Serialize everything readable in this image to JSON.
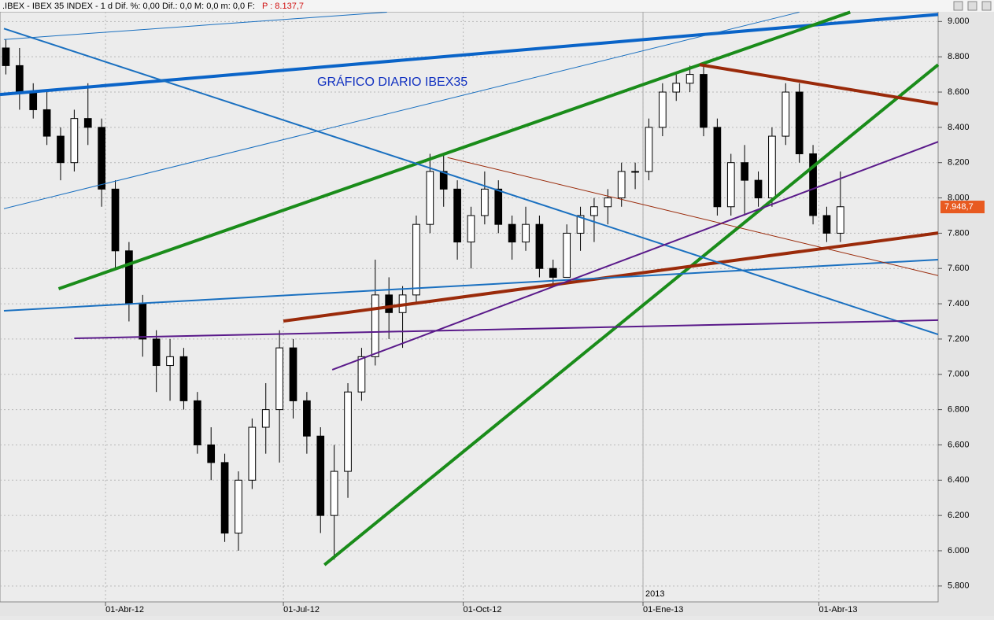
{
  "header": {
    "instrument": ".IBEX - IBEX 35 INDEX - 1 d  Dif. %: 0,00  Dif.: 0,0  M: 0,0  m: 0,0  F:",
    "price": "P : 8.137,7"
  },
  "chart_data": {
    "type": "candlestick",
    "title": "GRÁFICO DIARIO IBEX35",
    "x": [
      "2012-02-10",
      "2012-02-17",
      "2012-02-24",
      "2012-03-02",
      "2012-03-09",
      "2012-03-16",
      "2012-03-23",
      "2012-03-30",
      "2012-04-06",
      "2012-04-13",
      "2012-04-20",
      "2012-04-27",
      "2012-05-04",
      "2012-05-11",
      "2012-05-18",
      "2012-05-25",
      "2012-06-01",
      "2012-06-08",
      "2012-06-15",
      "2012-06-22",
      "2012-06-29",
      "2012-07-06",
      "2012-07-13",
      "2012-07-20",
      "2012-07-27",
      "2012-08-03",
      "2012-08-10",
      "2012-08-17",
      "2012-08-24",
      "2012-08-31",
      "2012-09-07",
      "2012-09-14",
      "2012-09-21",
      "2012-09-28",
      "2012-10-05",
      "2012-10-12",
      "2012-10-19",
      "2012-10-26",
      "2012-11-02",
      "2012-11-09",
      "2012-11-16",
      "2012-11-23",
      "2012-11-30",
      "2012-12-07",
      "2012-12-14",
      "2012-12-21",
      "2012-12-28",
      "2013-01-04",
      "2013-01-11",
      "2013-01-18",
      "2013-01-25",
      "2013-02-01",
      "2013-02-08",
      "2013-02-15",
      "2013-02-22",
      "2013-03-01",
      "2013-03-08",
      "2013-03-15",
      "2013-03-22",
      "2013-03-29",
      "2013-04-05",
      "2013-04-12"
    ],
    "open": [
      8850,
      8750,
      8600,
      8500,
      8350,
      8200,
      8450,
      8400,
      8050,
      7700,
      7400,
      7200,
      7050,
      7100,
      6850,
      6600,
      6500,
      6100,
      6400,
      6700,
      6800,
      7150,
      6850,
      6650,
      6200,
      6450,
      6900,
      7100,
      7450,
      7350,
      7450,
      7850,
      8150,
      8050,
      7750,
      7900,
      8050,
      7850,
      7750,
      7850,
      7600,
      7550,
      7800,
      7900,
      7950,
      8000,
      8150,
      8150,
      8400,
      8600,
      8650,
      8700,
      8400,
      7950,
      8200,
      8100,
      8000,
      8350,
      8600,
      8250,
      7900,
      7800
    ],
    "high": [
      8900,
      8850,
      8650,
      8600,
      8400,
      8500,
      8650,
      8450,
      8100,
      7750,
      7450,
      7250,
      7200,
      7150,
      6900,
      6700,
      6550,
      6450,
      6750,
      6950,
      7250,
      7200,
      6900,
      6700,
      6600,
      6950,
      7150,
      7650,
      7550,
      7500,
      7900,
      8250,
      8250,
      8100,
      7950,
      8150,
      8100,
      7900,
      7950,
      7900,
      7650,
      7850,
      7950,
      8000,
      8050,
      8200,
      8200,
      8450,
      8650,
      8700,
      8750,
      8750,
      8450,
      8250,
      8300,
      8150,
      8400,
      8650,
      8650,
      8300,
      7950,
      8150
    ],
    "low": [
      8700,
      8500,
      8450,
      8300,
      8100,
      8150,
      8300,
      7950,
      7600,
      7300,
      7100,
      6900,
      6850,
      6800,
      6550,
      6400,
      6050,
      6000,
      6350,
      6550,
      6500,
      6750,
      6550,
      6100,
      5950,
      6300,
      6850,
      7050,
      7200,
      7150,
      7400,
      7800,
      7950,
      7650,
      7600,
      7850,
      7800,
      7650,
      7700,
      7550,
      7500,
      7550,
      7700,
      7750,
      7850,
      7950,
      8050,
      8100,
      8350,
      8550,
      8600,
      8350,
      7900,
      7900,
      7900,
      7950,
      7950,
      8300,
      8200,
      7850,
      7750,
      7750
    ],
    "close": [
      8750,
      8600,
      8500,
      8350,
      8200,
      8450,
      8400,
      8050,
      7700,
      7400,
      7200,
      7050,
      7100,
      6850,
      6600,
      6500,
      6100,
      6400,
      6700,
      6800,
      7150,
      6850,
      6650,
      6200,
      6450,
      6900,
      7100,
      7450,
      7350,
      7450,
      7850,
      8150,
      8050,
      7750,
      7900,
      8050,
      7850,
      7750,
      7850,
      7600,
      7550,
      7800,
      7900,
      7950,
      8000,
      8150,
      8150,
      8400,
      8600,
      8650,
      8700,
      8400,
      7950,
      8200,
      8100,
      8000,
      8350,
      8600,
      8250,
      7900,
      7800,
      7950
    ],
    "xlim": [
      "2012-02-07",
      "2013-06-01"
    ],
    "xticks": [
      {
        "value": "2012-04-01",
        "label": "01-Abr-12"
      },
      {
        "value": "2012-07-01",
        "label": "01-Jul-12"
      },
      {
        "value": "2012-10-01",
        "label": "01-Oct-12"
      },
      {
        "value": "2013-01-01",
        "label": "01-Ene-13"
      },
      {
        "value": "2013-04-01",
        "label": "01-Abr-13"
      }
    ],
    "year_marker": {
      "value": "2013-01-01",
      "label": "2013"
    },
    "ylim": [
      5710,
      9055
    ],
    "yticks": [
      {
        "value": 5800,
        "label": "5.800"
      },
      {
        "value": 6000,
        "label": "6.000"
      },
      {
        "value": 6200,
        "label": "6.200"
      },
      {
        "value": 6400,
        "label": "6.400"
      },
      {
        "value": 6600,
        "label": "6.600"
      },
      {
        "value": 6800,
        "label": "6.800"
      },
      {
        "value": 7000,
        "label": "7.000"
      },
      {
        "value": 7200,
        "label": "7.200"
      },
      {
        "value": 7400,
        "label": "7.400"
      },
      {
        "value": 7600,
        "label": "7.600"
      },
      {
        "value": 7800,
        "label": "7.800"
      },
      {
        "value": 8000,
        "label": "8.000"
      },
      {
        "value": 8200,
        "label": "8.200"
      },
      {
        "value": 8400,
        "label": "8.400"
      },
      {
        "value": 8600,
        "label": "8.600"
      },
      {
        "value": 8800,
        "label": "8.800"
      },
      {
        "value": 9000,
        "label": "9.000"
      }
    ],
    "grid": true,
    "last_price": {
      "value": 7948.7,
      "label": "7.948,7"
    },
    "trendlines": [
      {
        "color": "#0a64c8",
        "width": 4,
        "x": [
          "2012-02-07",
          "2013-06-01"
        ],
        "y": [
          8586,
          9040
        ]
      },
      {
        "color": "#1a8c1a",
        "width": 4,
        "x": [
          "2012-03-08",
          "2013-04-17"
        ],
        "y": [
          7485,
          9053
        ]
      },
      {
        "color": "#1a8c1a",
        "width": 4,
        "x": [
          "2012-07-22",
          "2013-06-01"
        ],
        "y": [
          5920,
          8755
        ]
      },
      {
        "color": "#9a2a0a",
        "width": 4,
        "x": [
          "2012-07-01",
          "2013-06-01"
        ],
        "y": [
          7302,
          7801
        ]
      },
      {
        "color": "#9a2a0a",
        "width": 4,
        "x": [
          "2013-01-30",
          "2013-06-01"
        ],
        "y": [
          8755,
          8532
        ]
      },
      {
        "color": "#1a70c0",
        "width": 2,
        "x": [
          "2012-02-09",
          "2013-06-01"
        ],
        "y": [
          8960,
          7226
        ]
      },
      {
        "color": "#1a70c0",
        "width": 2,
        "x": [
          "2012-02-09",
          "2013-06-01"
        ],
        "y": [
          7360,
          7650
        ]
      },
      {
        "color": "#5a1a8a",
        "width": 2,
        "x": [
          "2012-03-16",
          "2013-06-01"
        ],
        "y": [
          7204,
          7307
        ]
      },
      {
        "color": "#5a1a8a",
        "width": 2,
        "x": [
          "2012-07-26",
          "2013-06-01"
        ],
        "y": [
          7026,
          8318
        ]
      },
      {
        "color": "#1a70c0",
        "width": 1,
        "x": [
          "2012-02-09",
          "2013-03-22"
        ],
        "y": [
          7939,
          9053
        ]
      },
      {
        "color": "#1a70c0",
        "width": 1,
        "x": [
          "2012-02-09",
          "2012-08-23"
        ],
        "y": [
          8898,
          9053
        ]
      },
      {
        "color": "#9a2a0a",
        "width": 1,
        "x": [
          "2012-09-23",
          "2013-06-01"
        ],
        "y": [
          8229,
          7560
        ]
      }
    ]
  }
}
